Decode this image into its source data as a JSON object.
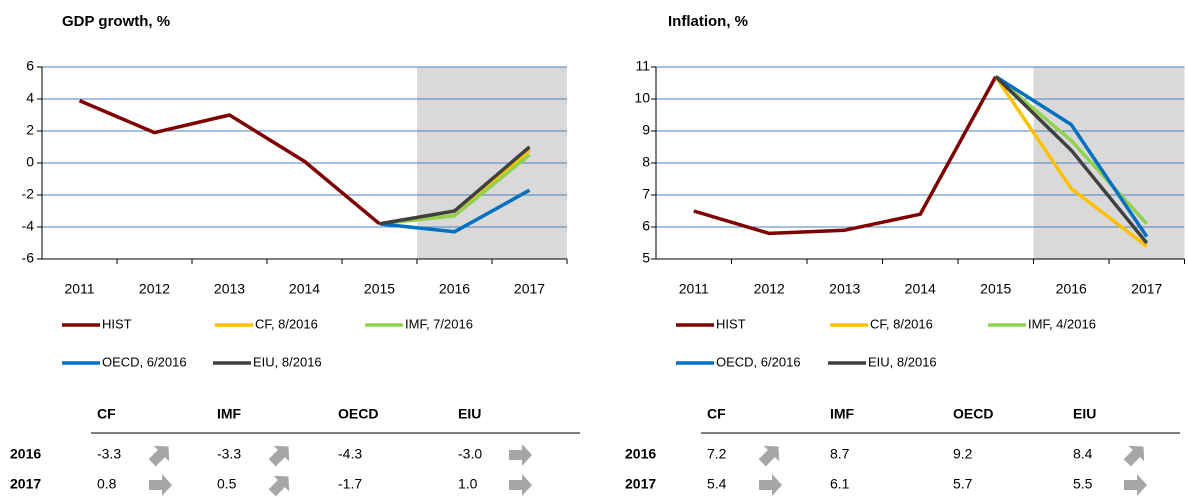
{
  "chart_data": [
    {
      "type": "line",
      "title": "GDP growth, %",
      "categories": [
        "2011",
        "2012",
        "2013",
        "2014",
        "2015",
        "2016",
        "2017"
      ],
      "ylim": [
        -6,
        6
      ],
      "yticks": [
        -6,
        -4,
        -2,
        0,
        2,
        4,
        6
      ],
      "grid": true,
      "series": [
        {
          "name": "HIST",
          "color": "#7f0000",
          "values": [
            3.9,
            1.9,
            3.0,
            0.1,
            -3.8,
            null,
            null
          ]
        },
        {
          "name": "CF, 8/2016",
          "color": "#ffc000",
          "values": [
            null,
            null,
            null,
            null,
            -3.8,
            -3.3,
            0.8
          ]
        },
        {
          "name": "IMF, 7/2016",
          "color": "#92d050",
          "values": [
            null,
            null,
            null,
            null,
            -3.8,
            -3.3,
            0.5
          ]
        },
        {
          "name": "OECD, 6/2016",
          "color": "#0070c0",
          "values": [
            null,
            null,
            null,
            null,
            -3.8,
            -4.3,
            -1.7
          ]
        },
        {
          "name": "EIU, 8/2016",
          "color": "#404040",
          "values": [
            null,
            null,
            null,
            null,
            -3.8,
            -3.0,
            1.0
          ]
        }
      ]
    },
    {
      "type": "line",
      "title": "Inflation, %",
      "categories": [
        "2011",
        "2012",
        "2013",
        "2014",
        "2015",
        "2016",
        "2017"
      ],
      "ylim": [
        5,
        11
      ],
      "yticks": [
        5,
        6,
        7,
        8,
        9,
        10,
        11
      ],
      "grid": true,
      "series": [
        {
          "name": "HIST",
          "color": "#7f0000",
          "values": [
            6.5,
            5.8,
            5.9,
            6.4,
            10.7,
            null,
            null
          ]
        },
        {
          "name": "CF, 8/2016",
          "color": "#ffc000",
          "values": [
            null,
            null,
            null,
            null,
            10.7,
            7.2,
            5.4
          ]
        },
        {
          "name": "IMF, 4/2016",
          "color": "#92d050",
          "values": [
            null,
            null,
            null,
            null,
            10.7,
            8.7,
            6.1
          ]
        },
        {
          "name": "OECD, 6/2016",
          "color": "#0070c0",
          "values": [
            null,
            null,
            null,
            null,
            10.7,
            9.2,
            5.7
          ]
        },
        {
          "name": "EIU, 8/2016",
          "color": "#404040",
          "values": [
            null,
            null,
            null,
            null,
            10.7,
            8.4,
            5.5
          ]
        }
      ]
    }
  ],
  "tables": [
    {
      "columns": [
        "CF",
        "IMF",
        "OECD",
        "EIU"
      ],
      "rows": [
        {
          "label": "2016",
          "values": [
            "-3.3",
            "-3.3",
            "-4.3",
            "-3.0"
          ],
          "arrows": [
            "up",
            "up",
            null,
            "right"
          ]
        },
        {
          "label": "2017",
          "values": [
            "0.8",
            "0.5",
            "-1.7",
            "1.0"
          ],
          "arrows": [
            "right",
            "up",
            null,
            "right"
          ]
        }
      ]
    },
    {
      "columns": [
        "CF",
        "IMF",
        "OECD",
        "EIU"
      ],
      "rows": [
        {
          "label": "2016",
          "values": [
            "7.2",
            "8.7",
            "9.2",
            "8.4"
          ],
          "arrows": [
            "up",
            null,
            null,
            "up"
          ]
        },
        {
          "label": "2017",
          "values": [
            "5.4",
            "6.1",
            "5.7",
            "5.5"
          ],
          "arrows": [
            "right",
            null,
            null,
            "right"
          ]
        }
      ]
    }
  ]
}
